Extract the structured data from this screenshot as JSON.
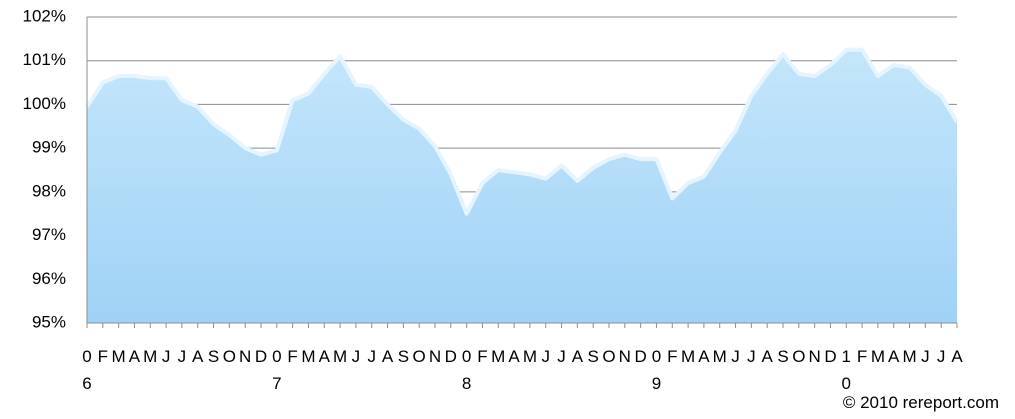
{
  "chart_data": {
    "type": "area",
    "categories": [
      "0\n6",
      "F",
      "M",
      "A",
      "M",
      "J",
      "J",
      "A",
      "S",
      "O",
      "N",
      "D",
      "0\n7",
      "F",
      "M",
      "A",
      "M",
      "J",
      "J",
      "A",
      "S",
      "O",
      "N",
      "D",
      "0\n8",
      "F",
      "M",
      "A",
      "M",
      "J",
      "J",
      "A",
      "S",
      "O",
      "N",
      "D",
      "0\n9",
      "F",
      "M",
      "A",
      "M",
      "J",
      "J",
      "A",
      "S",
      "O",
      "N",
      "D",
      "1\n0",
      "F",
      "M",
      "A",
      "M",
      "J",
      "J",
      "A"
    ],
    "values": [
      99.95,
      100.5,
      100.65,
      100.65,
      100.6,
      100.6,
      100.1,
      99.95,
      99.55,
      99.3,
      99.0,
      98.85,
      98.95,
      100.1,
      100.25,
      100.7,
      101.1,
      100.45,
      100.4,
      100.0,
      99.65,
      99.45,
      99.05,
      98.4,
      97.5,
      98.2,
      98.5,
      98.45,
      98.4,
      98.3,
      98.6,
      98.25,
      98.55,
      98.75,
      98.85,
      98.75,
      98.75,
      97.85,
      98.2,
      98.35,
      98.9,
      99.4,
      100.2,
      100.7,
      101.15,
      100.7,
      100.65,
      100.9,
      101.25,
      101.25,
      100.65,
      100.9,
      100.85,
      100.45,
      100.2,
      99.6
    ],
    "color": "#a6d6f7",
    "ylim": [
      95,
      102
    ],
    "yticks": [
      {
        "value": 95,
        "label": "95%"
      },
      {
        "value": 96,
        "label": "96%"
      },
      {
        "value": 97,
        "label": "97%"
      },
      {
        "value": 98,
        "label": "98%"
      },
      {
        "value": 99,
        "label": "99%"
      },
      {
        "value": 100,
        "label": "100%"
      },
      {
        "value": 101,
        "label": "101%"
      },
      {
        "value": 102,
        "label": "102%"
      }
    ],
    "grid": true,
    "credit": "© 2010 rereport.com"
  }
}
